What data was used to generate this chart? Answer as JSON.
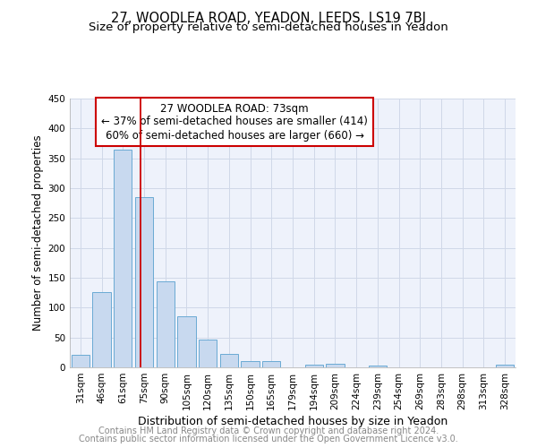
{
  "title": "27, WOODLEA ROAD, YEADON, LEEDS, LS19 7BJ",
  "subtitle": "Size of property relative to semi-detached houses in Yeadon",
  "xlabel": "Distribution of semi-detached houses by size in Yeadon",
  "ylabel": "Number of semi-detached properties",
  "footnote1": "Contains HM Land Registry data © Crown copyright and database right 2024.",
  "footnote2": "Contains public sector information licensed under the Open Government Licence v3.0.",
  "bar_labels": [
    "31sqm",
    "46sqm",
    "61sqm",
    "75sqm",
    "90sqm",
    "105sqm",
    "120sqm",
    "135sqm",
    "150sqm",
    "165sqm",
    "179sqm",
    "194sqm",
    "209sqm",
    "224sqm",
    "239sqm",
    "254sqm",
    "269sqm",
    "283sqm",
    "298sqm",
    "313sqm",
    "328sqm"
  ],
  "bar_values": [
    21,
    126,
    365,
    285,
    144,
    85,
    47,
    22,
    11,
    11,
    0,
    5,
    6,
    0,
    3,
    0,
    0,
    0,
    0,
    0,
    4
  ],
  "bar_color": "#c8d9ef",
  "bar_edge_color": "#6aaad4",
  "property_line_x": 2.82,
  "property_line_label": "27 WOODLEA ROAD: 73sqm",
  "annotation_smaller": "← 37% of semi-detached houses are smaller (414)",
  "annotation_larger": "60% of semi-detached houses are larger (660) →",
  "annotation_box_color": "#ffffff",
  "annotation_box_edge_color": "#cc0000",
  "line_color": "#cc0000",
  "ylim": [
    0,
    450
  ],
  "yticks": [
    0,
    50,
    100,
    150,
    200,
    250,
    300,
    350,
    400,
    450
  ],
  "grid_color": "#d0d8e8",
  "bg_color": "#eef2fb",
  "title_fontsize": 10.5,
  "subtitle_fontsize": 9.5,
  "xlabel_fontsize": 9,
  "ylabel_fontsize": 8.5,
  "tick_fontsize": 7.5,
  "annot_fontsize": 8.5,
  "footnote_fontsize": 7
}
